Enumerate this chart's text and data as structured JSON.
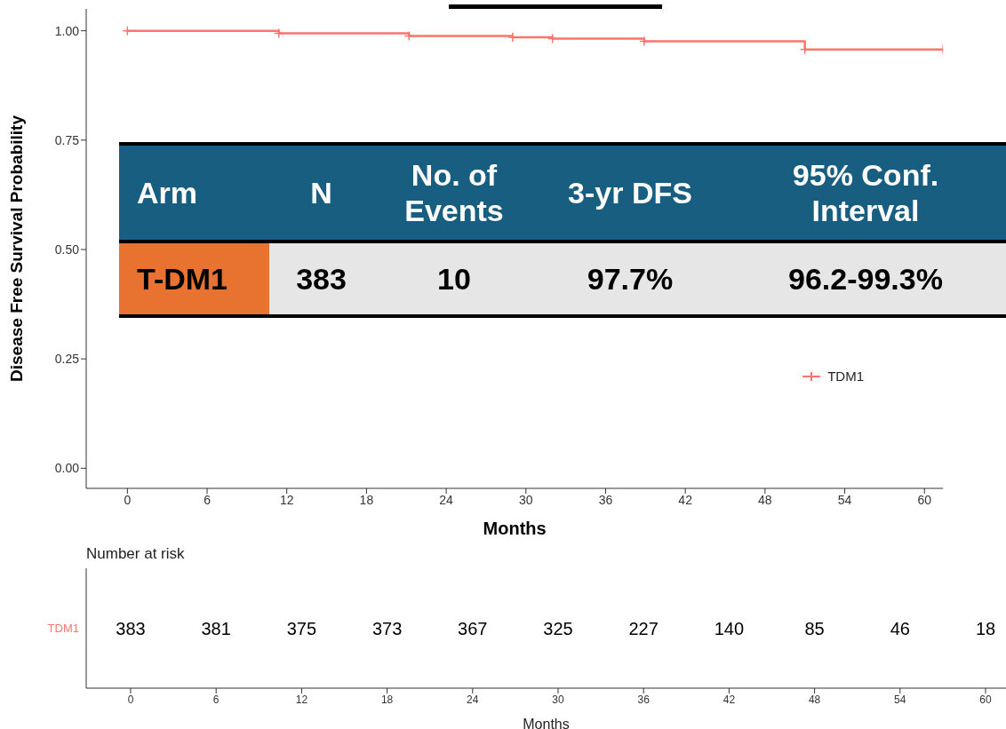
{
  "chart_data": [
    {
      "type": "step",
      "xlabel": "Months",
      "ylabel": "Disease Free Survival Probability",
      "xlim": [
        -3.1,
        61.4
      ],
      "ylim": [
        -0.046,
        1.05
      ],
      "xticks": [
        0,
        6,
        12,
        18,
        24,
        30,
        36,
        42,
        48,
        54,
        60
      ],
      "yticks": [
        {
          "value": 0,
          "label": "0.00"
        },
        {
          "value": 0.25,
          "label": "0.25"
        },
        {
          "value": 0.5,
          "label": "0.50"
        },
        {
          "value": 0.75,
          "label": "0.75"
        },
        {
          "value": 1,
          "label": "1.00"
        }
      ],
      "legend": "right",
      "marker": "cross",
      "series": [
        {
          "name": "TDM1",
          "color": "#f8766d",
          "x": [
            0,
            11.4,
            21.2,
            29,
            32,
            38.9,
            51,
            61.4
          ],
          "values": [
            1.0,
            0.994,
            0.988,
            0.985,
            0.982,
            0.976,
            0.957,
            0.957
          ]
        }
      ]
    },
    {
      "type": "other",
      "categories": [
        "Arm",
        "N",
        "No. of Events",
        "3-yr DFS",
        "95% Conf. Interval"
      ],
      "cell_labels": [
        [
          "T-DM1",
          "383",
          "10",
          "97.7%",
          "96.2-99.3%"
        ]
      ],
      "colors": [
        "#175e80",
        "#e87330",
        "#e6e6e6"
      ]
    },
    {
      "type": "heatmap",
      "title": "Number at risk",
      "xlabel": "Months",
      "categories": [
        "0",
        "6",
        "12",
        "18",
        "24",
        "30",
        "36",
        "42",
        "48",
        "54",
        "60"
      ],
      "y_categories": [
        "TDM1"
      ],
      "color": "#f8766d",
      "data_labels": true,
      "cells": [
        [
          383,
          381,
          375,
          373,
          367,
          325,
          227,
          140,
          85,
          46,
          18
        ]
      ]
    }
  ]
}
